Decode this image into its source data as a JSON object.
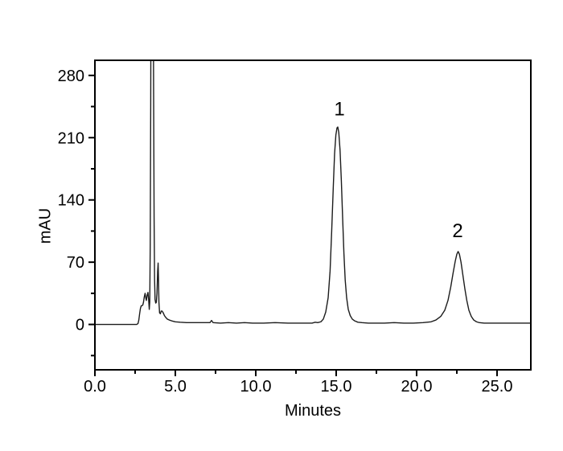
{
  "figure": {
    "background_color": "#ffffff",
    "trace_color": "#1c1c1c",
    "axis_color": "#000000"
  },
  "chart_data": {
    "type": "line",
    "title": "",
    "xlabel": "Minutes",
    "ylabel": "mAU",
    "xlim": [
      0,
      27.1
    ],
    "ylim": [
      -51,
      297
    ],
    "grid": false,
    "legend": null,
    "x_major_ticks": [
      0,
      5,
      10,
      15,
      20,
      25
    ],
    "x_major_tick_labels": [
      "0.0",
      "5.0",
      "10.0",
      "15.0",
      "20.0",
      "25.0"
    ],
    "x_minor_ticks": [
      2.5,
      7.5,
      12.5,
      17.5,
      22.5
    ],
    "y_major_ticks": [
      0,
      70,
      140,
      210,
      280
    ],
    "y_major_tick_labels": [
      "0",
      "70",
      "140",
      "210",
      "280"
    ],
    "y_minor_ticks": [
      -35,
      35,
      105,
      175,
      245
    ],
    "annotations": [
      {
        "label": "1",
        "x": 15.2,
        "y": 235
      },
      {
        "label": "2",
        "x": 22.55,
        "y": 98
      }
    ],
    "peaks": [
      {
        "label": "1",
        "retention_time_min": 15.1,
        "height_mAU": 222
      },
      {
        "label": "2",
        "retention_time_min": 22.6,
        "height_mAU": 82
      }
    ],
    "solvent_front": {
      "small_bumps_mAU": [
        35,
        36
      ],
      "main_peak_clipped_above_mAU": 297,
      "spike_mAU": 69,
      "region_min": [
        2.7,
        4.5
      ]
    },
    "series": [
      {
        "name": "chromatogram",
        "points": [
          [
            0,
            0
          ],
          [
            0.5,
            0
          ],
          [
            1.0,
            0
          ],
          [
            1.5,
            0
          ],
          [
            2.0,
            0
          ],
          [
            2.4,
            0
          ],
          [
            2.6,
            0
          ],
          [
            2.68,
            1
          ],
          [
            2.73,
            5
          ],
          [
            2.78,
            12
          ],
          [
            2.83,
            18
          ],
          [
            2.88,
            21
          ],
          [
            2.93,
            21
          ],
          [
            2.98,
            22
          ],
          [
            3.02,
            25
          ],
          [
            3.07,
            31
          ],
          [
            3.12,
            35
          ],
          [
            3.16,
            30
          ],
          [
            3.2,
            27
          ],
          [
            3.25,
            33
          ],
          [
            3.3,
            36
          ],
          [
            3.34,
            28
          ],
          [
            3.38,
            17
          ],
          [
            3.41,
            25
          ],
          [
            3.44,
            90
          ],
          [
            3.47,
            250
          ],
          [
            3.49,
            420
          ],
          [
            3.62,
            420
          ],
          [
            3.65,
            260
          ],
          [
            3.68,
            120
          ],
          [
            3.71,
            50
          ],
          [
            3.74,
            28
          ],
          [
            3.78,
            24
          ],
          [
            3.82,
            25
          ],
          [
            3.86,
            35
          ],
          [
            3.9,
            60
          ],
          [
            3.93,
            69
          ],
          [
            3.95,
            55
          ],
          [
            3.98,
            25
          ],
          [
            4.02,
            13
          ],
          [
            4.07,
            12
          ],
          [
            4.12,
            15
          ],
          [
            4.18,
            15
          ],
          [
            4.25,
            13
          ],
          [
            4.32,
            10
          ],
          [
            4.4,
            8
          ],
          [
            4.5,
            6
          ],
          [
            4.62,
            5
          ],
          [
            4.78,
            4
          ],
          [
            5.0,
            3
          ],
          [
            5.3,
            2.5
          ],
          [
            5.7,
            2
          ],
          [
            6.2,
            2
          ],
          [
            6.8,
            2
          ],
          [
            7.15,
            2
          ],
          [
            7.25,
            4.5
          ],
          [
            7.35,
            2
          ],
          [
            7.8,
            1.5
          ],
          [
            8.3,
            2
          ],
          [
            8.8,
            1.5
          ],
          [
            9.3,
            2
          ],
          [
            9.8,
            1.5
          ],
          [
            10.5,
            1.5
          ],
          [
            11.2,
            2
          ],
          [
            12.0,
            1.5
          ],
          [
            12.8,
            1.5
          ],
          [
            13.5,
            1.5
          ],
          [
            13.7,
            2.5
          ],
          [
            13.85,
            2
          ],
          [
            14.05,
            3
          ],
          [
            14.2,
            6
          ],
          [
            14.35,
            14
          ],
          [
            14.5,
            30
          ],
          [
            14.62,
            60
          ],
          [
            14.72,
            105
          ],
          [
            14.82,
            155
          ],
          [
            14.9,
            192
          ],
          [
            14.98,
            213
          ],
          [
            15.05,
            221
          ],
          [
            15.1,
            222
          ],
          [
            15.16,
            216
          ],
          [
            15.24,
            196
          ],
          [
            15.32,
            162
          ],
          [
            15.4,
            120
          ],
          [
            15.48,
            80
          ],
          [
            15.56,
            50
          ],
          [
            15.65,
            30
          ],
          [
            15.75,
            17
          ],
          [
            15.87,
            10
          ],
          [
            16.0,
            6
          ],
          [
            16.15,
            4
          ],
          [
            16.35,
            2.5
          ],
          [
            16.6,
            2
          ],
          [
            17.0,
            1.5
          ],
          [
            17.5,
            1.5
          ],
          [
            18.0,
            1.5
          ],
          [
            18.6,
            2
          ],
          [
            19.2,
            1.5
          ],
          [
            19.8,
            1.5
          ],
          [
            20.4,
            2
          ],
          [
            20.9,
            3
          ],
          [
            21.2,
            5
          ],
          [
            21.5,
            9
          ],
          [
            21.75,
            16
          ],
          [
            21.95,
            27
          ],
          [
            22.12,
            42
          ],
          [
            22.27,
            58
          ],
          [
            22.4,
            71
          ],
          [
            22.5,
            79
          ],
          [
            22.58,
            82
          ],
          [
            22.66,
            79
          ],
          [
            22.76,
            70
          ],
          [
            22.88,
            55
          ],
          [
            23.0,
            40
          ],
          [
            23.12,
            27
          ],
          [
            23.25,
            16
          ],
          [
            23.4,
            9
          ],
          [
            23.55,
            5
          ],
          [
            23.72,
            3
          ],
          [
            23.9,
            2
          ],
          [
            24.2,
            1.5
          ],
          [
            24.6,
            1.5
          ],
          [
            25.1,
            1.5
          ],
          [
            25.7,
            1.5
          ],
          [
            26.3,
            1.5
          ],
          [
            27.1,
            1.5
          ]
        ]
      }
    ]
  }
}
